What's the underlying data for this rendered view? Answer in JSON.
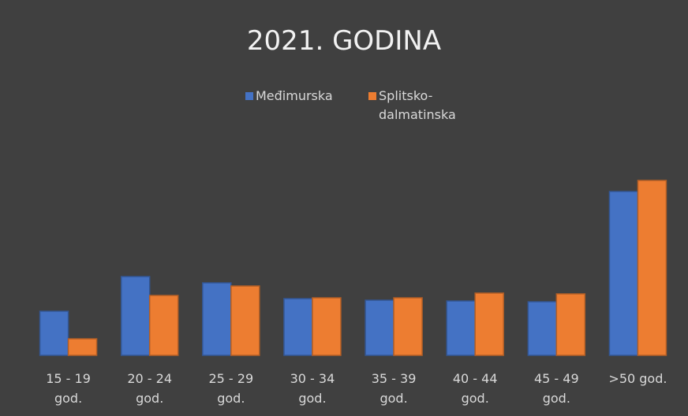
{
  "chart_data": {
    "type": "bar",
    "title": "2021. GODINA",
    "categories": [
      "15 - 19 god.",
      "20 - 24 god.",
      "25 - 29 god.",
      "30 - 34 god.",
      "35 - 39 god.",
      "40 - 44 god.",
      "45 - 49 god.",
      ">50 god."
    ],
    "series": [
      {
        "name": "Međimurska",
        "color": "#4472c4",
        "values": [
          56,
          100,
          92,
          72,
          70,
          69,
          68,
          208
        ]
      },
      {
        "name": "Splitsko-dalmatinska",
        "color": "#ed7d31",
        "values": [
          21,
          76,
          88,
          73,
          73,
          79,
          78,
          222
        ]
      }
    ],
    "ylim": [
      0,
      240
    ],
    "legend": "top",
    "grid": false
  }
}
